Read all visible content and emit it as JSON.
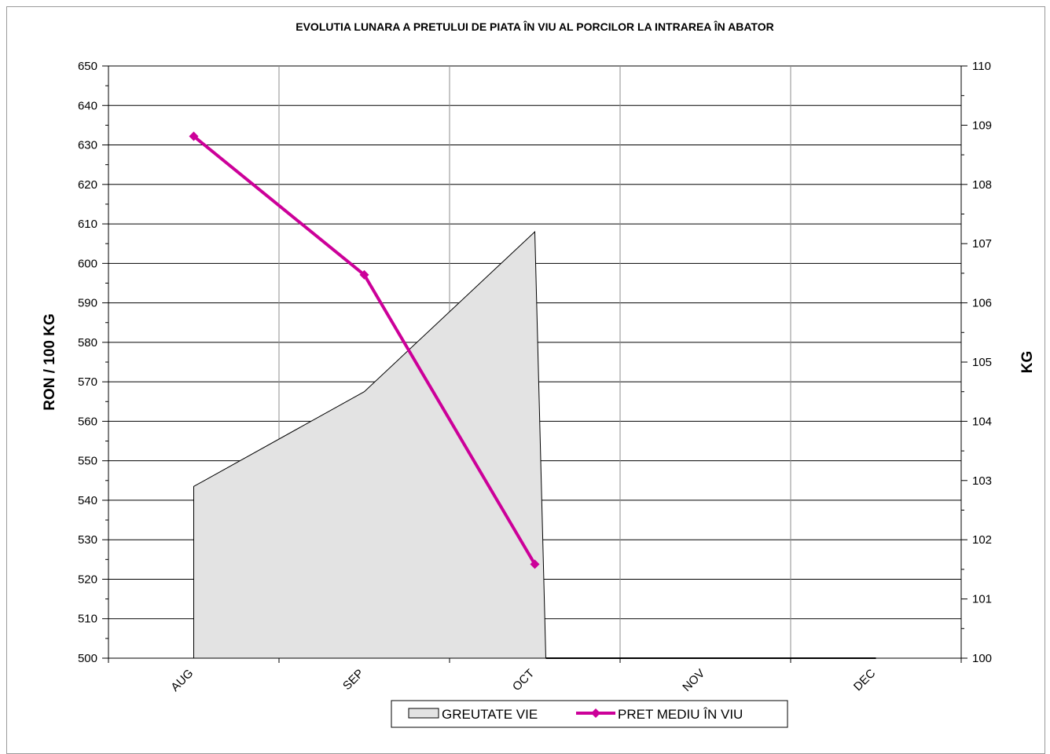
{
  "chart_data": {
    "type": "area",
    "title": "EVOLUTIA LUNARA A PRETULUI  DE PIATA  ÎN VIU AL PORCILOR  LA INTRAREA ÎN ABATOR",
    "categories": [
      "AUG",
      "SEP",
      "OCT",
      "NOV",
      "DEC"
    ],
    "y_left": {
      "label": "RON / 100 KG",
      "range": [
        500,
        650
      ],
      "ticks": [
        "500",
        "510",
        "520",
        "530",
        "540",
        "550",
        "560",
        "570",
        "580",
        "590",
        "600",
        "610",
        "620",
        "630",
        "640",
        "650"
      ]
    },
    "y_right": {
      "label": "KG",
      "range": [
        100,
        110
      ],
      "ticks": [
        "100",
        "101",
        "102",
        "103",
        "104",
        "105",
        "106",
        "107",
        "108",
        "109",
        "110"
      ]
    },
    "series": [
      {
        "name": "GREUTATE  VIE",
        "type": "area",
        "axis": "right",
        "color": "#e3e3e3",
        "values": [
          102.9,
          104.5,
          107.2,
          null,
          null
        ]
      },
      {
        "name": "PRET MEDIU ÎN VIU",
        "type": "line",
        "axis": "left",
        "color": "#cc0099",
        "values": [
          632.2,
          597.1,
          523.8,
          null,
          null
        ]
      }
    ],
    "grid": true,
    "legend": "bottom"
  }
}
